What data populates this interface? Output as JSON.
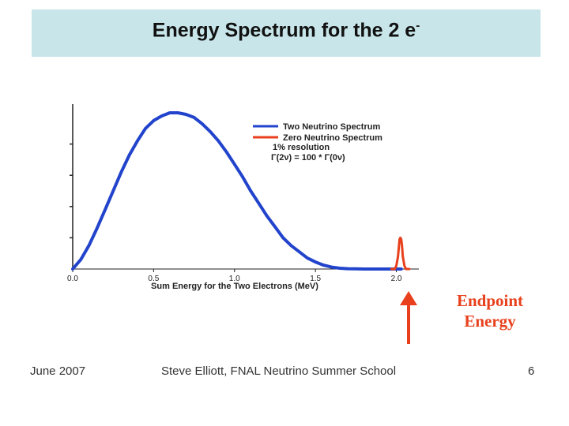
{
  "slide": {
    "title_main": "Energy Spectrum for the 2 e",
    "title_sup": "-",
    "footer_left": "June 2007",
    "footer_center": "Steve Elliott, FNAL Neutrino Summer School",
    "footer_right": "6",
    "endpoint_line1": "Endpoint",
    "endpoint_line2": "Energy",
    "colors": {
      "two_neutrino": "#2244cc",
      "zero_neutrino": "#e8401c",
      "arrow": "#e8401c",
      "title_band": "#c8e6ea"
    }
  },
  "chart_data": {
    "type": "line",
    "xlabel": "Sum Energy for the Two Electrons (MeV)",
    "ylabel": "",
    "xlim": [
      0.0,
      2.1
    ],
    "ylim": [
      0.0,
      1.0
    ],
    "x_ticks": [
      "0.0",
      "0.5",
      "1.0",
      "1.5",
      "2.0"
    ],
    "x_tick_values": [
      0.0,
      0.5,
      1.0,
      1.5,
      2.0
    ],
    "y_tick_values": [
      0.2,
      0.4,
      0.6,
      0.8
    ],
    "grid": false,
    "legend_position": "top-right",
    "legend_entries": [
      "Two Neutrino Spectrum",
      "Zero Neutrino Spectrum"
    ],
    "legend_notes": [
      "1% resolution",
      "Γ(2ν) = 100 * Γ(0ν)"
    ],
    "series": [
      {
        "name": "Two Neutrino Spectrum",
        "x": [
          0.0,
          0.05,
          0.1,
          0.15,
          0.2,
          0.25,
          0.3,
          0.35,
          0.4,
          0.45,
          0.5,
          0.55,
          0.6,
          0.65,
          0.7,
          0.75,
          0.8,
          0.85,
          0.9,
          0.95,
          1.0,
          1.05,
          1.1,
          1.15,
          1.2,
          1.25,
          1.3,
          1.35,
          1.4,
          1.45,
          1.5,
          1.55,
          1.6,
          1.65,
          1.7,
          1.75,
          1.8,
          1.85,
          1.9,
          1.95,
          2.0,
          2.03
        ],
        "y": [
          0.0,
          0.06,
          0.15,
          0.26,
          0.38,
          0.5,
          0.62,
          0.73,
          0.82,
          0.9,
          0.95,
          0.98,
          1.0,
          1.0,
          0.99,
          0.97,
          0.93,
          0.88,
          0.82,
          0.75,
          0.67,
          0.59,
          0.5,
          0.42,
          0.34,
          0.27,
          0.2,
          0.15,
          0.11,
          0.07,
          0.045,
          0.025,
          0.012,
          0.005,
          0.002,
          0.001,
          0.0,
          0.0,
          0.0,
          0.0,
          0.0,
          0.0
        ]
      },
      {
        "name": "Zero Neutrino Spectrum",
        "x": [
          1.97,
          1.99,
          2.0,
          2.01,
          2.02,
          2.025,
          2.03,
          2.035,
          2.04,
          2.05,
          2.06,
          2.08
        ],
        "y": [
          0.0,
          0.0,
          0.02,
          0.08,
          0.19,
          0.2,
          0.19,
          0.15,
          0.08,
          0.02,
          0.0,
          0.0
        ]
      }
    ]
  }
}
